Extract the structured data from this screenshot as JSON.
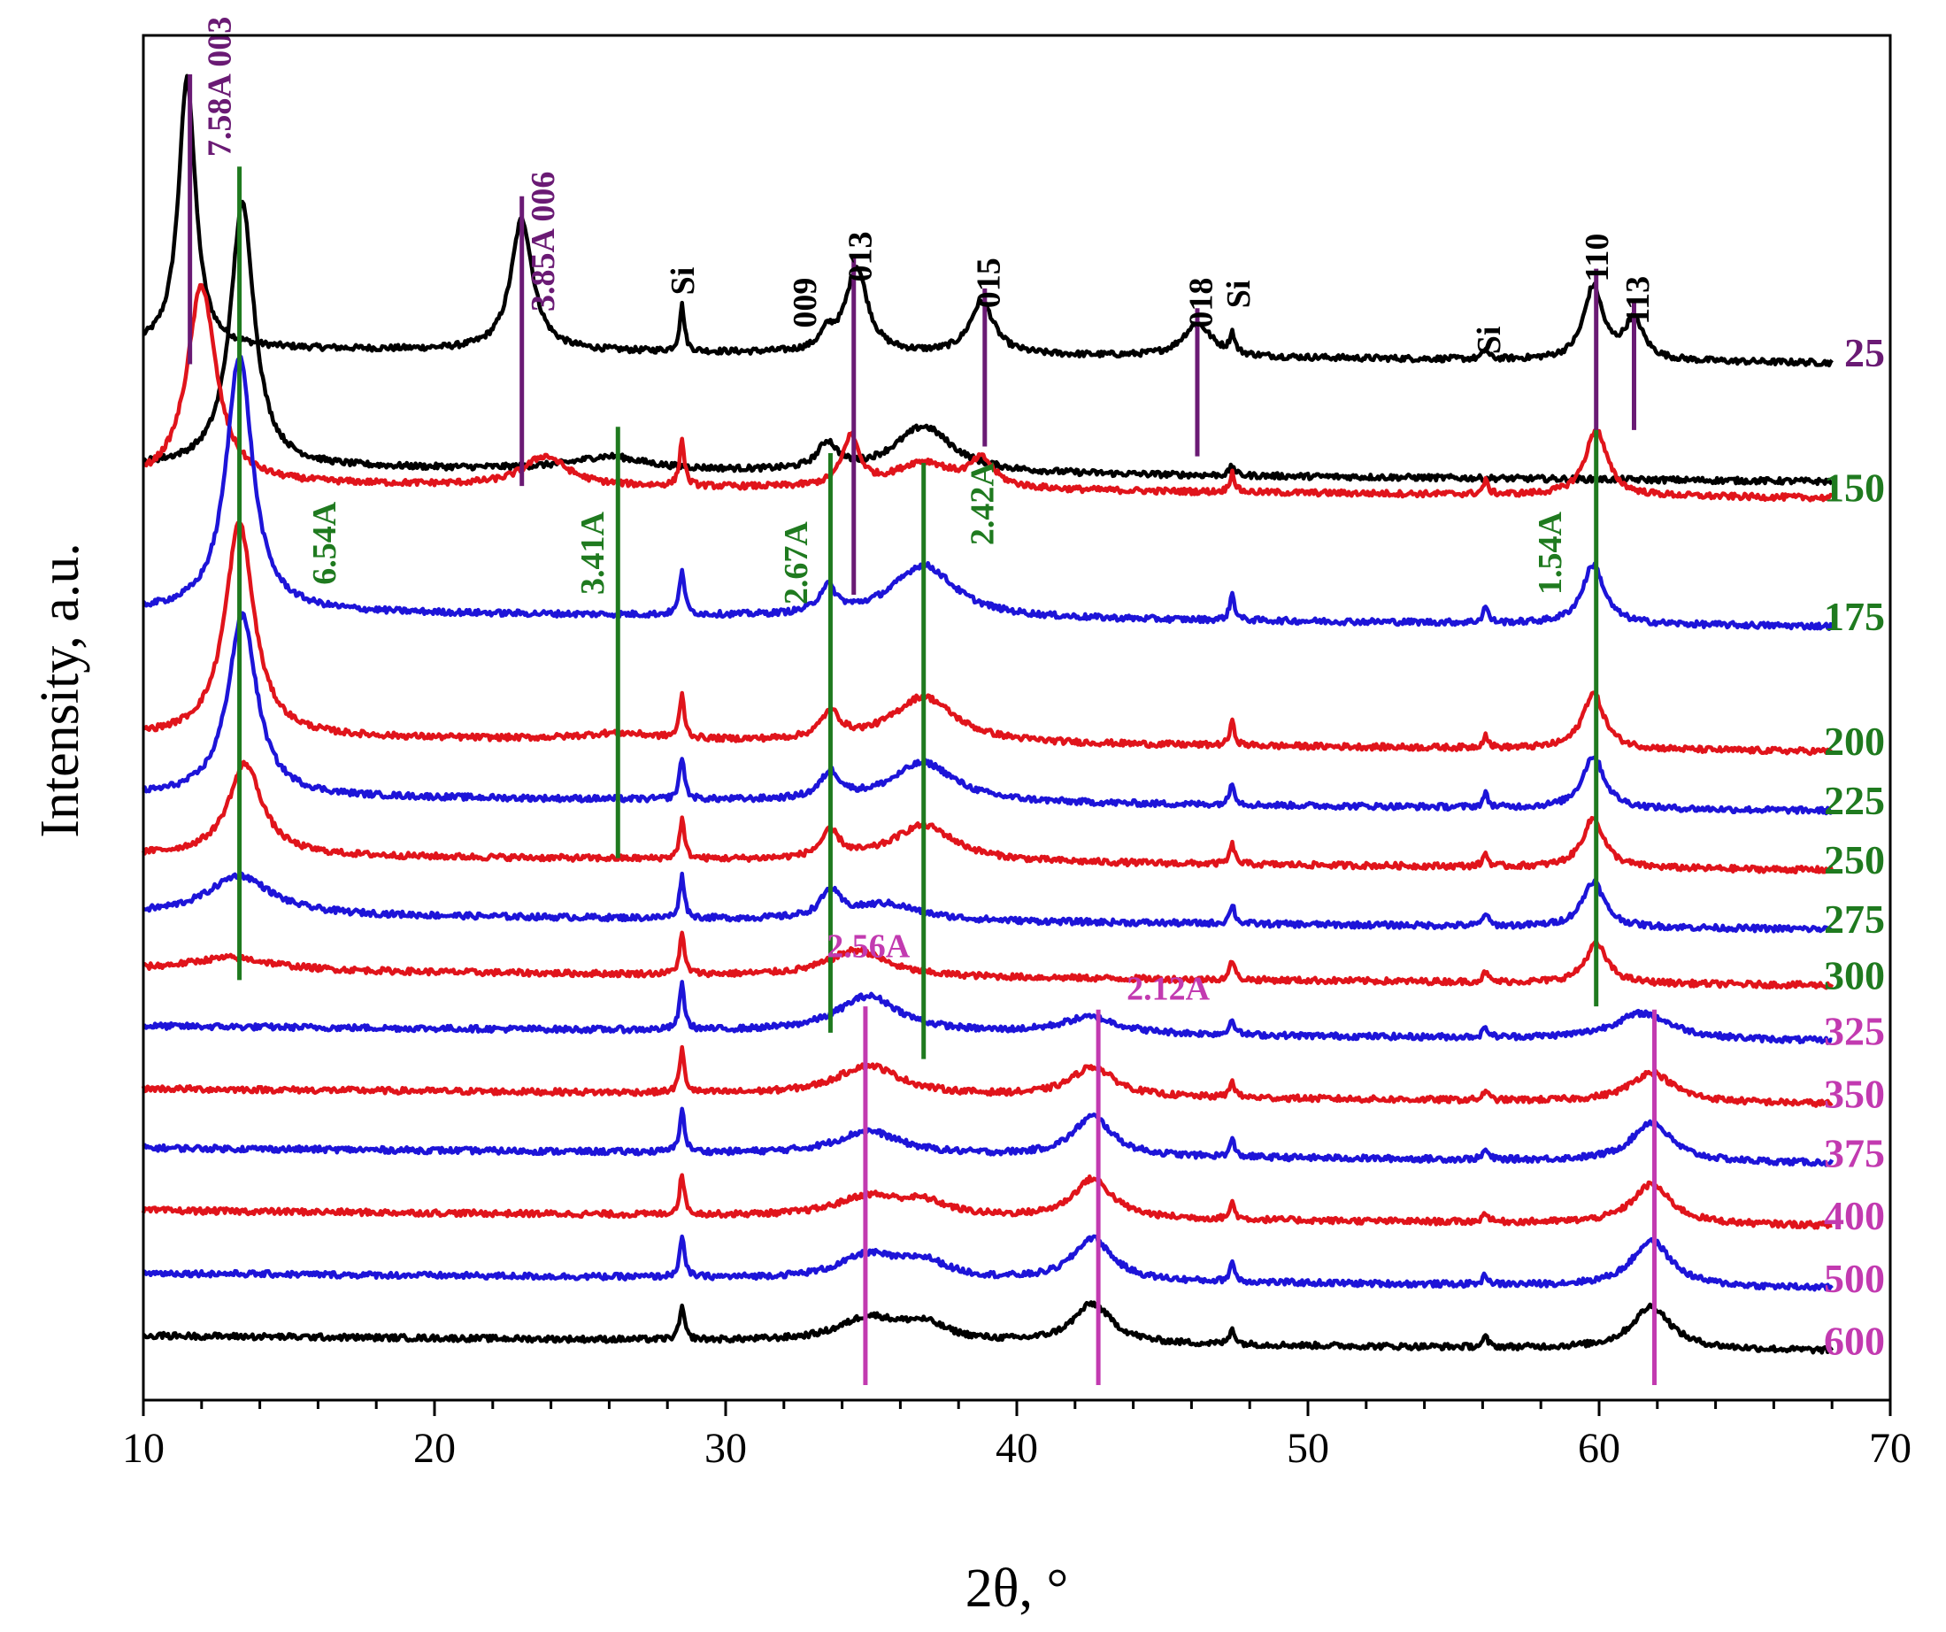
{
  "chart_data": {
    "type": "line",
    "title": "",
    "xlabel": "2θ, °",
    "ylabel": "Intensity, a.u.",
    "xlim": [
      10,
      70
    ],
    "x_ticks": [
      10,
      20,
      30,
      40,
      50,
      60,
      70
    ],
    "x_tick_labels": [
      "10",
      "20",
      "30",
      "40",
      "50",
      "60",
      "70"
    ],
    "x_minor_step": 2,
    "y_ticks": [],
    "x_data_range": [
      10,
      68
    ],
    "colors": {
      "black": "#000000",
      "red": "#e0141b",
      "blue": "#1d14d8",
      "purple": "#6a1a74",
      "green": "#1f7a1f",
      "magenta": "#c23ab0"
    },
    "series": [
      {
        "name": "25",
        "temp": "25",
        "label_color": "purple",
        "line_color": "black",
        "baseline": 0.0,
        "peaks": [
          [
            11.5,
            8.2,
            0.35
          ],
          [
            23.0,
            4.0,
            0.45
          ],
          [
            28.5,
            1.4,
            0.1
          ],
          [
            33.5,
            0.5,
            0.3
          ],
          [
            34.5,
            2.6,
            0.45
          ],
          [
            38.8,
            1.6,
            0.5
          ],
          [
            46.2,
            1.0,
            0.6
          ],
          [
            47.4,
            0.6,
            0.1
          ],
          [
            56.1,
            0.3,
            0.1
          ],
          [
            59.8,
            2.2,
            0.4
          ],
          [
            61.2,
            1.2,
            0.4
          ]
        ]
      },
      {
        "name": "150 overlay",
        "temp": "",
        "label_color": "green",
        "line_color": "black",
        "baseline": -3.6,
        "peaks": [
          [
            13.4,
            8.0,
            0.5
          ],
          [
            26.0,
            0.4,
            1.5
          ],
          [
            33.5,
            0.8,
            0.4
          ],
          [
            36.8,
            1.4,
            1.2
          ],
          [
            47.4,
            0.3,
            0.1
          ]
        ]
      },
      {
        "name": "150",
        "temp": "150",
        "label_color": "green",
        "line_color": "red",
        "baseline": -4.1,
        "peaks": [
          [
            12.0,
            6.0,
            0.6
          ],
          [
            23.8,
            0.9,
            0.9
          ],
          [
            28.5,
            1.4,
            0.1
          ],
          [
            34.3,
            1.5,
            0.35
          ],
          [
            36.8,
            0.8,
            1.2
          ],
          [
            38.8,
            0.8,
            0.5
          ],
          [
            47.4,
            0.6,
            0.1
          ],
          [
            56.1,
            0.4,
            0.1
          ],
          [
            59.9,
            2.0,
            0.45
          ]
        ]
      },
      {
        "name": "175",
        "temp": "175",
        "label_color": "green",
        "line_color": "blue",
        "baseline": -8.0,
        "peaks": [
          [
            13.3,
            7.8,
            0.55
          ],
          [
            28.5,
            1.4,
            0.1
          ],
          [
            33.5,
            0.8,
            0.35
          ],
          [
            36.8,
            1.6,
            1.3
          ],
          [
            47.4,
            0.8,
            0.1
          ],
          [
            56.1,
            0.5,
            0.1
          ],
          [
            59.8,
            1.8,
            0.45
          ]
        ]
      },
      {
        "name": "200",
        "temp": "200",
        "label_color": "green",
        "line_color": "red",
        "baseline": -11.8,
        "peaks": [
          [
            13.3,
            6.5,
            0.6
          ],
          [
            26.3,
            0.2,
            1.5
          ],
          [
            28.5,
            1.3,
            0.1
          ],
          [
            33.6,
            0.8,
            0.4
          ],
          [
            36.8,
            1.4,
            1.3
          ],
          [
            47.4,
            0.7,
            0.1
          ],
          [
            56.1,
            0.4,
            0.1
          ],
          [
            59.8,
            1.7,
            0.45
          ]
        ]
      },
      {
        "name": "225",
        "temp": "225",
        "label_color": "green",
        "line_color": "blue",
        "baseline": -13.6,
        "peaks": [
          [
            13.4,
            5.5,
            0.6
          ],
          [
            28.5,
            1.3,
            0.1
          ],
          [
            33.6,
            0.8,
            0.4
          ],
          [
            36.8,
            1.2,
            1.3
          ],
          [
            47.4,
            0.7,
            0.1
          ],
          [
            56.1,
            0.4,
            0.1
          ],
          [
            59.8,
            1.6,
            0.45
          ]
        ]
      },
      {
        "name": "250",
        "temp": "250",
        "label_color": "green",
        "line_color": "red",
        "baseline": -15.4,
        "peaks": [
          [
            13.5,
            2.8,
            0.7
          ],
          [
            28.5,
            1.2,
            0.1
          ],
          [
            33.6,
            0.8,
            0.4
          ],
          [
            36.8,
            1.1,
            1.3
          ],
          [
            47.4,
            0.6,
            0.1
          ],
          [
            56.1,
            0.4,
            0.1
          ],
          [
            59.8,
            1.5,
            0.45
          ]
        ]
      },
      {
        "name": "275",
        "temp": "275",
        "label_color": "green",
        "line_color": "blue",
        "baseline": -17.2,
        "peaks": [
          [
            13.3,
            1.2,
            1.3
          ],
          [
            28.5,
            1.3,
            0.1
          ],
          [
            33.6,
            0.8,
            0.4
          ],
          [
            35.5,
            0.5,
            1.4
          ],
          [
            47.4,
            0.6,
            0.1
          ],
          [
            56.1,
            0.4,
            0.1
          ],
          [
            59.8,
            1.4,
            0.45
          ]
        ]
      },
      {
        "name": "300",
        "temp": "300",
        "label_color": "green",
        "line_color": "red",
        "baseline": -18.9,
        "peaks": [
          [
            13.0,
            0.4,
            1.8
          ],
          [
            28.5,
            1.2,
            0.1
          ],
          [
            34.5,
            0.8,
            1.2
          ],
          [
            47.4,
            0.6,
            0.1
          ],
          [
            56.1,
            0.3,
            0.1
          ],
          [
            59.9,
            1.2,
            0.45
          ]
        ]
      },
      {
        "name": "325",
        "temp": "325",
        "label_color": "magenta",
        "line_color": "blue",
        "baseline": -20.6,
        "peaks": [
          [
            28.5,
            1.4,
            0.1
          ],
          [
            34.9,
            1.1,
            1.3
          ],
          [
            42.5,
            0.5,
            1.2
          ],
          [
            47.4,
            0.5,
            0.1
          ],
          [
            56.1,
            0.3,
            0.1
          ],
          [
            61.5,
            0.8,
            1.2
          ]
        ]
      },
      {
        "name": "350",
        "temp": "350",
        "label_color": "magenta",
        "line_color": "red",
        "baseline": -22.5,
        "peaks": [
          [
            28.5,
            1.3,
            0.1
          ],
          [
            34.9,
            0.9,
            1.3
          ],
          [
            42.6,
            0.9,
            0.9
          ],
          [
            47.4,
            0.5,
            0.1
          ],
          [
            56.1,
            0.3,
            0.1
          ],
          [
            61.8,
            0.9,
            0.9
          ]
        ]
      },
      {
        "name": "375",
        "temp": "375",
        "label_color": "magenta",
        "line_color": "blue",
        "baseline": -24.3,
        "peaks": [
          [
            28.5,
            1.3,
            0.1
          ],
          [
            34.9,
            0.7,
            1.3
          ],
          [
            42.6,
            1.2,
            0.8
          ],
          [
            47.4,
            0.5,
            0.1
          ],
          [
            56.1,
            0.3,
            0.1
          ],
          [
            61.8,
            1.2,
            0.8
          ]
        ]
      },
      {
        "name": "400",
        "temp": "400",
        "label_color": "magenta",
        "line_color": "red",
        "baseline": -26.2,
        "peaks": [
          [
            28.5,
            1.2,
            0.1
          ],
          [
            34.9,
            0.6,
            1.3
          ],
          [
            36.8,
            0.4,
            1.0
          ],
          [
            42.6,
            1.2,
            0.8
          ],
          [
            47.4,
            0.5,
            0.1
          ],
          [
            56.1,
            0.3,
            0.1
          ],
          [
            61.8,
            1.2,
            0.8
          ]
        ]
      },
      {
        "name": "500",
        "temp": "500",
        "label_color": "magenta",
        "line_color": "blue",
        "baseline": -28.1,
        "peaks": [
          [
            28.5,
            1.2,
            0.1
          ],
          [
            34.9,
            0.7,
            1.2
          ],
          [
            36.8,
            0.5,
            1.0
          ],
          [
            42.6,
            1.3,
            0.8
          ],
          [
            47.4,
            0.6,
            0.1
          ],
          [
            56.1,
            0.3,
            0.1
          ],
          [
            61.8,
            1.4,
            0.8
          ]
        ]
      },
      {
        "name": "600",
        "temp": "600",
        "label_color": "magenta",
        "line_color": "black",
        "baseline": -30.0,
        "peaks": [
          [
            28.5,
            1.0,
            0.1
          ],
          [
            34.9,
            0.7,
            1.2
          ],
          [
            36.8,
            0.5,
            1.0
          ],
          [
            42.6,
            1.2,
            0.8
          ],
          [
            47.4,
            0.5,
            0.1
          ],
          [
            56.1,
            0.3,
            0.1
          ],
          [
            61.8,
            1.3,
            0.8
          ]
        ]
      }
    ],
    "y_range": [
      -31.5,
      9.0
    ],
    "reference_lines": [
      {
        "x": 11.6,
        "y_from": -0.5,
        "y_to": 8.3,
        "color": "purple"
      },
      {
        "x": 23.0,
        "y_from": -4.2,
        "y_to": 4.6,
        "color": "purple"
      },
      {
        "x": 34.4,
        "y_from": -7.5,
        "y_to": 2.8,
        "color": "purple"
      },
      {
        "x": 38.9,
        "y_from": -3.0,
        "y_to": 1.8,
        "color": "purple"
      },
      {
        "x": 46.2,
        "y_from": -3.3,
        "y_to": 1.2,
        "color": "purple"
      },
      {
        "x": 59.9,
        "y_from": -2.5,
        "y_to": 2.4,
        "color": "purple"
      },
      {
        "x": 61.2,
        "y_from": -2.5,
        "y_to": 1.4,
        "color": "purple"
      },
      {
        "x": 13.3,
        "y_from": -19.2,
        "y_to": 5.5,
        "color": "green"
      },
      {
        "x": 26.3,
        "y_from": -15.5,
        "y_to": -2.4,
        "color": "green"
      },
      {
        "x": 33.6,
        "y_from": -20.8,
        "y_to": -3.2,
        "color": "green"
      },
      {
        "x": 36.8,
        "y_from": -21.6,
        "y_to": -3.5,
        "color": "green"
      },
      {
        "x": 59.9,
        "y_from": -20.0,
        "y_to": -2.5,
        "color": "green"
      },
      {
        "x": 34.8,
        "y_from": -31.5,
        "y_to": -20.0,
        "color": "magenta"
      },
      {
        "x": 42.8,
        "y_from": -31.5,
        "y_to": -20.1,
        "color": "magenta"
      },
      {
        "x": 61.9,
        "y_from": -31.5,
        "y_to": -20.1,
        "color": "magenta"
      }
    ],
    "annotations": [
      {
        "text": "7.58A 003",
        "x": 13.0,
        "y": 5.8,
        "color": "purple",
        "rotate": true
      },
      {
        "text": "3.85A 006",
        "x": 24.1,
        "y": 1.1,
        "color": "purple",
        "rotate": true
      },
      {
        "text": "Si",
        "x": 28.9,
        "y": 1.6,
        "color": "black",
        "rotate": true
      },
      {
        "text": "009",
        "x": 33.1,
        "y": 0.6,
        "color": "black",
        "rotate": true
      },
      {
        "text": "013",
        "x": 35.0,
        "y": 2.0,
        "color": "black",
        "rotate": true
      },
      {
        "text": "015",
        "x": 39.4,
        "y": 1.2,
        "color": "black",
        "rotate": true
      },
      {
        "text": "018",
        "x": 46.7,
        "y": 0.6,
        "color": "black",
        "rotate": true
      },
      {
        "text": "Si",
        "x": 48.0,
        "y": 1.2,
        "color": "black",
        "rotate": true
      },
      {
        "text": "Si",
        "x": 56.6,
        "y": -0.2,
        "color": "black",
        "rotate": true
      },
      {
        "text": "110",
        "x": 60.3,
        "y": 2.0,
        "color": "black",
        "rotate": true
      },
      {
        "text": "113",
        "x": 61.7,
        "y": 0.7,
        "color": "black",
        "rotate": true
      },
      {
        "text": "6.54A",
        "x": 16.6,
        "y": -7.2,
        "color": "green",
        "rotate": true
      },
      {
        "text": "3.41A",
        "x": 25.8,
        "y": -7.5,
        "color": "green",
        "rotate": true
      },
      {
        "text": "2.67A",
        "x": 32.8,
        "y": -7.8,
        "color": "green",
        "rotate": true
      },
      {
        "text": "2.42A",
        "x": 39.2,
        "y": -6.0,
        "color": "green",
        "rotate": true
      },
      {
        "text": "1.54A",
        "x": 58.7,
        "y": -7.5,
        "color": "green",
        "rotate": true
      },
      {
        "text": "2.56A",
        "x": 34.9,
        "y": -18.5,
        "color": "magenta",
        "rotate": false
      },
      {
        "text": "2.12A",
        "x": 45.2,
        "y": -19.8,
        "color": "magenta",
        "rotate": false
      }
    ]
  }
}
